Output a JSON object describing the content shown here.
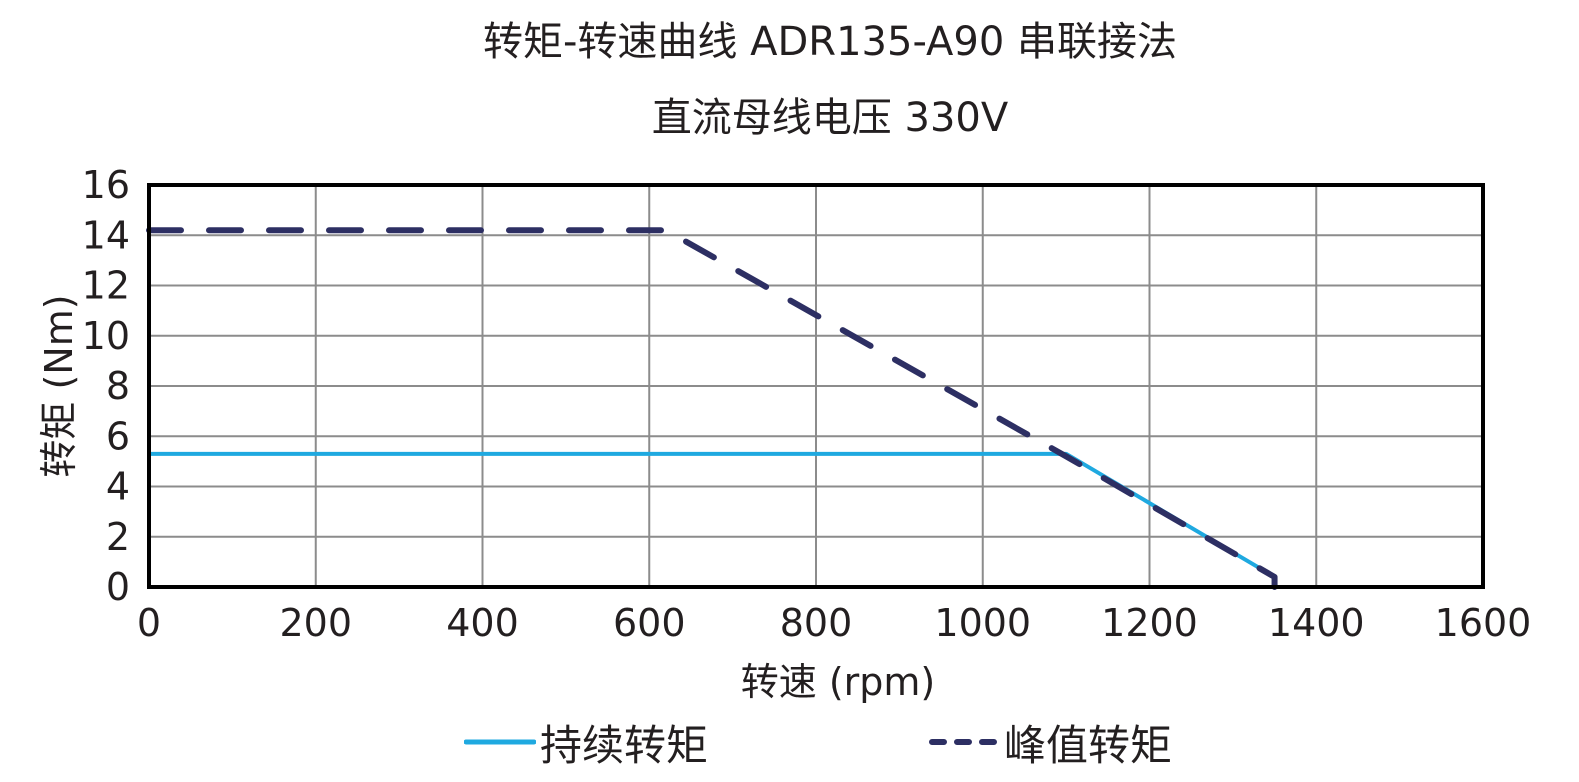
{
  "title": {
    "line1": "转矩-转速曲线 ADR135-A90 串联接法",
    "line2": "直流母线电压 330V"
  },
  "axes": {
    "xlabel": "转速 (rpm)",
    "ylabel": "转矩 (Nm)",
    "xticks": [
      "0",
      "200",
      "400",
      "600",
      "800",
      "1000",
      "1200",
      "1400",
      "1600"
    ],
    "yticks": [
      "0",
      "2",
      "4",
      "6",
      "8",
      "10",
      "12",
      "14",
      "16"
    ]
  },
  "legend": {
    "continuous": "持续转矩",
    "peak": "峰值转矩"
  },
  "colors": {
    "continuous": "#1fa9e0",
    "peak": "#2d2f63",
    "grid": "#8c8c8c",
    "frame": "#000000"
  },
  "chart_data": {
    "type": "line",
    "title": "转矩-转速曲线 ADR135-A90 串联接法 / 直流母线电压 330V",
    "xlabel": "转速 (rpm)",
    "ylabel": "转矩 (Nm)",
    "xlim": [
      0,
      1600
    ],
    "ylim": [
      0,
      16
    ],
    "grid": true,
    "legend_position": "bottom",
    "series": [
      {
        "name": "持续转矩",
        "style": "solid",
        "color": "#1fa9e0",
        "points": [
          [
            0,
            5.3
          ],
          [
            1100,
            5.3
          ],
          [
            1350,
            0.4
          ],
          [
            1350,
            0
          ]
        ]
      },
      {
        "name": "峰值转矩",
        "style": "dashed",
        "color": "#2d2f63",
        "points": [
          [
            0,
            14.2
          ],
          [
            620,
            14.2
          ],
          [
            1100,
            5.2
          ],
          [
            1350,
            0.4
          ],
          [
            1350,
            0
          ]
        ]
      }
    ]
  }
}
